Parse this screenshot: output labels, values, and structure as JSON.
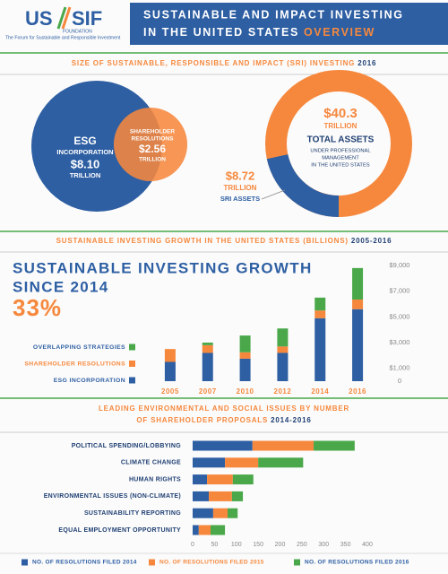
{
  "header": {
    "logo_us": "US",
    "logo_sif": "SIF",
    "logo_foundation": "FOUNDATION",
    "logo_tagline": "The Forum for Sustainable and Responsible Investment",
    "title_line1": "SUSTAINABLE AND IMPACT INVESTING",
    "title_line2": "IN THE UNITED STATES",
    "title_highlight": "OVERVIEW"
  },
  "size_section": {
    "heading": "SIZE OF SUSTAINABLE, RESPONSIBLE AND IMPACT (SRI) INVESTING",
    "heading_year": "2016",
    "venn": {
      "esg": {
        "label_lines": [
          "ESG",
          "INCORPORATION"
        ],
        "value": 8.1,
        "value_label": "$8.10",
        "unit": "TRILLION",
        "color": "#2e5fa3"
      },
      "shareholder": {
        "label_lines": [
          "SHAREHOLDER",
          "RESOLUTIONS"
        ],
        "value": 2.56,
        "value_label": "$2.56",
        "unit": "TRILLION",
        "color": "#f6883d"
      }
    },
    "donut": {
      "total": {
        "value": 40.3,
        "value_label": "$40.3",
        "unit": "TRILLION",
        "label": "TOTAL ASSETS",
        "description_lines": [
          "UNDER PROFESSIONAL",
          "MANAGEMENT",
          "IN THE UNITED STATES"
        ],
        "color": "#f6883d"
      },
      "sri": {
        "value": 8.72,
        "value_label": "$8.72",
        "unit": "TRILLION",
        "label": "SRI ASSETS",
        "color": "#2e5fa3"
      }
    }
  },
  "chart_data": [
    {
      "type": "bar",
      "stacked": true,
      "orientation": "vertical",
      "title": "SUSTAINABLE INVESTING GROWTH IN THE UNITED STATES (BILLIONS)",
      "title_year": "2005-2016",
      "headline_lines": [
        "SUSTAINABLE INVESTING GROWTH",
        "SINCE 2014"
      ],
      "headline_value": "33%",
      "categories": [
        "2005",
        "2007",
        "2010",
        "2012",
        "2014",
        "2016"
      ],
      "series": [
        {
          "name": "ESG INCORPORATION",
          "color": "#2e5fa3",
          "values": [
            1500,
            2200,
            1750,
            2200,
            4900,
            5600
          ]
        },
        {
          "name": "SHAREHOLDER RESOLUTIONS",
          "color": "#f6883d",
          "values": [
            1000,
            600,
            500,
            500,
            600,
            750
          ]
        },
        {
          "name": "OVERLAPPING STRATEGIES",
          "color": "#4aa84a",
          "values": [
            0,
            200,
            1300,
            1400,
            1000,
            2450
          ]
        }
      ],
      "ylim": [
        0,
        9000
      ],
      "yticks": [
        0,
        {
          "value": 1000,
          "label": "$1,000"
        },
        {
          "value": 3000,
          "label": "$3,000"
        },
        {
          "value": 5000,
          "label": "$5,000"
        },
        {
          "value": 7000,
          "label": "$7,000"
        },
        {
          "value": 9000,
          "label": "$9,000"
        }
      ],
      "legend": "left"
    },
    {
      "type": "bar",
      "stacked": true,
      "orientation": "horizontal",
      "title_lines": [
        "LEADING ENVIRONMENTAL AND SOCIAL ISSUES BY NUMBER",
        "OF SHAREHOLDER PROPOSALS"
      ],
      "title_year": "2014-2016",
      "categories": [
        "POLITICAL SPENDING/LOBBYING",
        "CLIMATE CHANGE",
        "HUMAN RIGHTS",
        "ENVIRONMENTAL ISSUES (NON-CLIMATE)",
        "SUSTAINABILITY REPORTING",
        "EQUAL EMPLOYMENT OPPORTUNITY"
      ],
      "series": [
        {
          "name": "NO. OF RESOLUTIONS FILED 2014",
          "color": "#2e5fa3",
          "values": [
            137,
            74,
            33,
            37,
            47,
            14
          ]
        },
        {
          "name": "NO. OF RESOLUTIONS FILED 2015",
          "color": "#f6883d",
          "values": [
            140,
            76,
            59,
            53,
            33,
            27
          ]
        },
        {
          "name": "NO. OF RESOLUTIONS FILED 2016",
          "color": "#4aa84a",
          "values": [
            94,
            103,
            47,
            25,
            23,
            33
          ]
        }
      ],
      "xlim": [
        0,
        400
      ],
      "xticks": [
        0,
        50,
        100,
        150,
        200,
        250,
        300,
        350,
        400
      ],
      "legend": "bottom"
    }
  ]
}
